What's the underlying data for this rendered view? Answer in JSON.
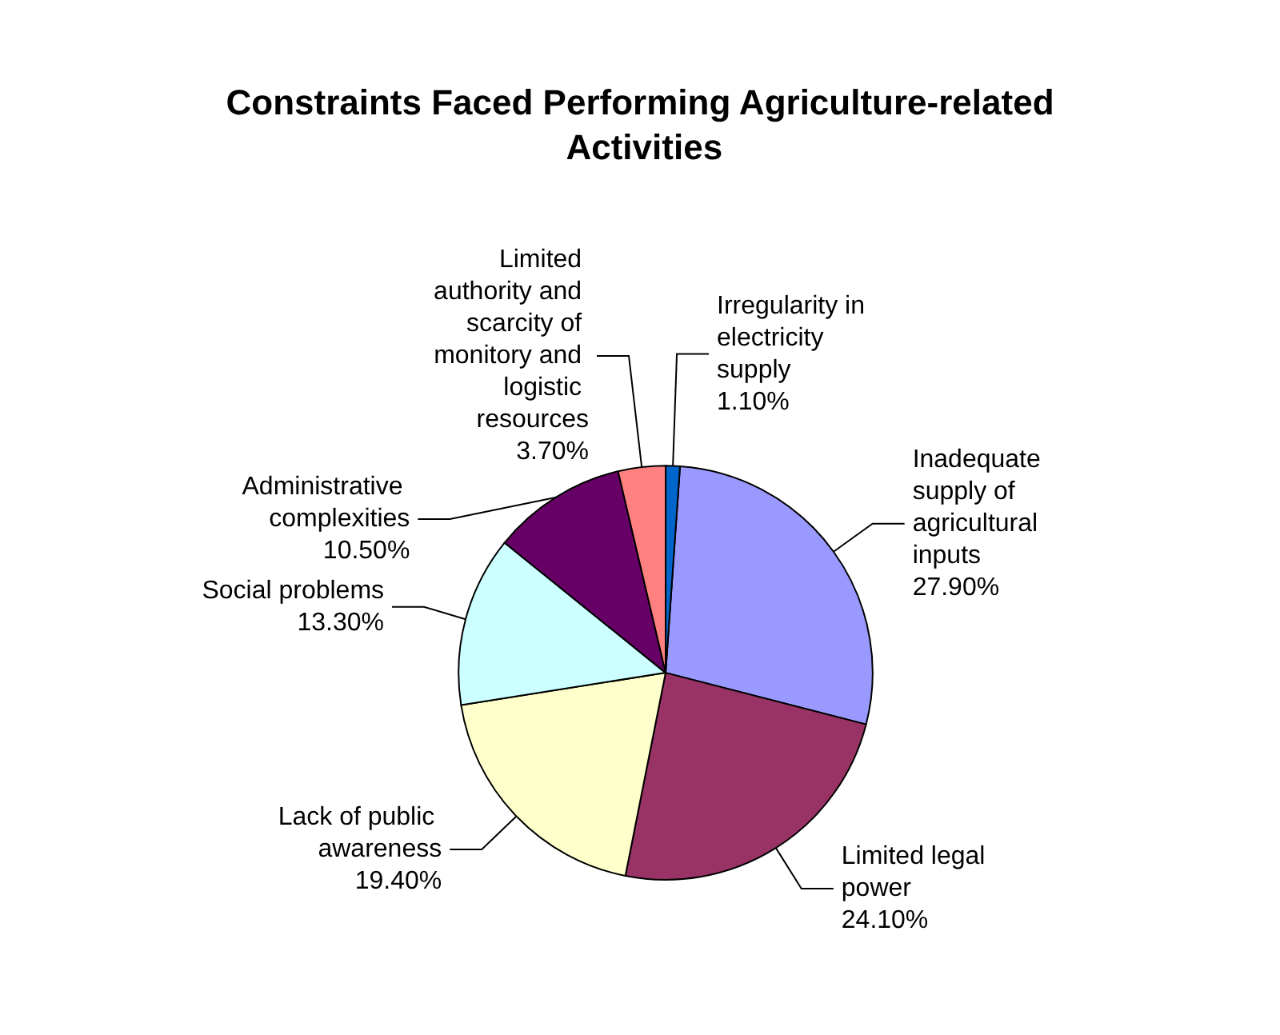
{
  "chart_data": {
    "type": "pie",
    "title": "Constraints Faced Performing Agriculture-related Activities",
    "categories": [
      "Inadequate supply of agricultural inputs",
      "Limited legal power",
      "Lack of public awareness",
      "Social problems",
      "Administrative complexities",
      "Limited authority and scarcity of monitory and logistic resources",
      "Irregularity in electricity supply"
    ],
    "values": [
      27.9,
      24.1,
      19.4,
      13.3,
      10.5,
      3.7,
      1.1
    ],
    "value_labels": [
      "27.90%",
      "24.10%",
      "19.40%",
      "13.30%",
      "10.50%",
      "3.70%",
      "1.10%"
    ],
    "colors": [
      "#9999ff",
      "#993366",
      "#ffffcc",
      "#ccffff",
      "#660066",
      "#ff8080",
      "#0066cc"
    ],
    "legend": false
  }
}
